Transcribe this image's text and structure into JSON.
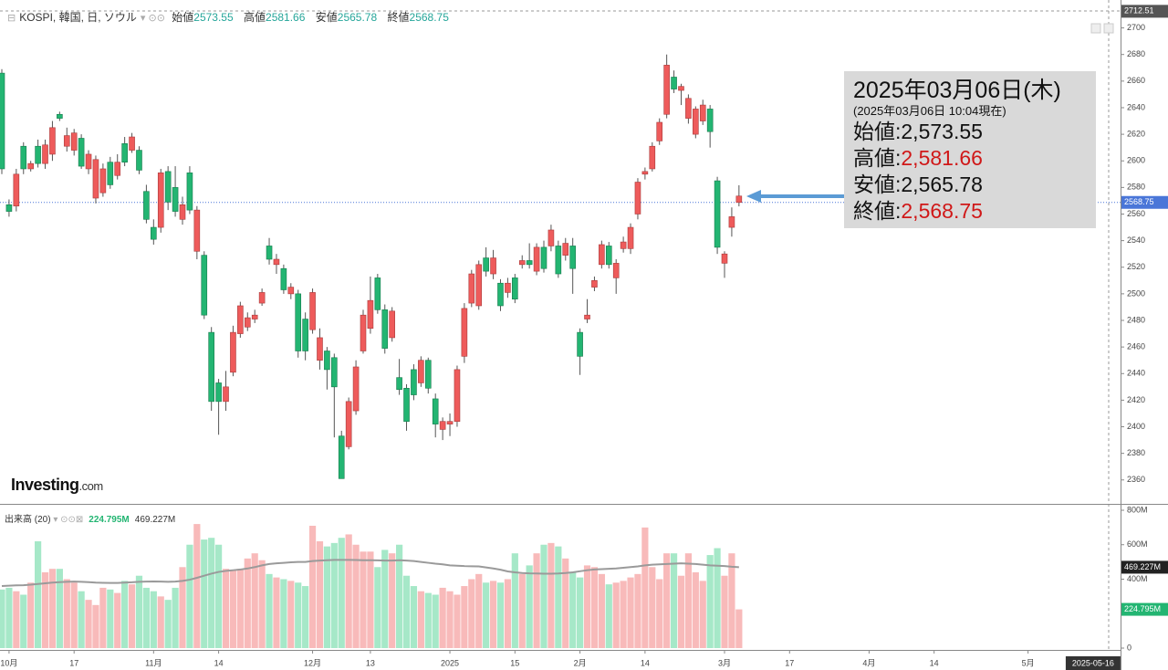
{
  "chart_data": {
    "type": "candlestick",
    "title": "KOSPI, 韓国, 日, ソウル",
    "header_labels": [
      "始値",
      "高値",
      "安値",
      "終値"
    ],
    "watermark": [
      "Investing",
      ".com"
    ],
    "volume_title": "出来高 (20)",
    "volume_labels": {
      "last": "224.795M",
      "ma": "469.227M"
    },
    "info_box": {
      "date": "2025年03月06日(木)",
      "time": "(2025年03月06日 10:04現在)",
      "rows": [
        {
          "label": "始値:",
          "value": "2,573.55"
        },
        {
          "label": "高値:",
          "value": "2,581.66"
        },
        {
          "label": "安値:",
          "value": "2,565.78"
        },
        {
          "label": "終値:",
          "value": "2,568.75"
        }
      ]
    },
    "colors": {
      "up": "#23b572",
      "down": "#ee5b5b",
      "up_volume": "#a6e8c8",
      "down_volume": "#f8baba",
      "ma": "#9a9a9a",
      "last": "#4a76d8"
    },
    "grid": false,
    "ylim": [
      2342,
      2721
    ],
    "yticks": [
      2360,
      2380,
      2400,
      2420,
      2440,
      2460,
      2480,
      2500,
      2520,
      2540,
      2560,
      2580,
      2600,
      2620,
      2640,
      2660,
      2680,
      2700
    ],
    "top_label": 2712.51,
    "volume_ylim": [
      0,
      800
    ],
    "volume_yticks": [
      0,
      {
        "value": 200,
        "label": "200M"
      },
      {
        "value": 400,
        "label": "400M"
      },
      {
        "value": 600,
        "label": "600M"
      },
      {
        "value": 800,
        "label": "800M"
      }
    ],
    "categories": [
      null,
      "10月",
      null,
      null,
      null,
      null,
      null,
      null,
      null,
      null,
      "17",
      null,
      null,
      null,
      null,
      null,
      null,
      null,
      null,
      null,
      null,
      "11月",
      null,
      null,
      null,
      null,
      null,
      null,
      null,
      null,
      "14",
      null,
      null,
      null,
      null,
      null,
      null,
      null,
      null,
      null,
      null,
      null,
      null,
      "12月",
      null,
      null,
      null,
      null,
      null,
      null,
      null,
      "13",
      null,
      null,
      null,
      null,
      null,
      null,
      null,
      null,
      null,
      null,
      "2025",
      null,
      null,
      null,
      null,
      null,
      null,
      null,
      null,
      "15",
      null,
      null,
      null,
      null,
      null,
      null,
      null,
      null,
      "2月",
      null,
      null,
      null,
      null,
      null,
      null,
      null,
      null,
      "14",
      null,
      null,
      null,
      null,
      null,
      null,
      null,
      null,
      null,
      null,
      "3月",
      null,
      null,
      null,
      null,
      null,
      null,
      null,
      null,
      "17",
      null,
      null,
      null,
      null,
      null,
      null,
      null,
      null,
      null,
      null,
      "4月",
      null,
      null,
      null,
      null,
      null,
      null,
      null,
      null,
      "14",
      null,
      null,
      null,
      null,
      null,
      null,
      null,
      null,
      null,
      null,
      null,
      null,
      "5月",
      null,
      null,
      null,
      null,
      null,
      null,
      null,
      null,
      "2025-05-16"
    ],
    "ohlc": [
      [
        2594,
        2669,
        2590,
        2666
      ],
      [
        2562,
        2571,
        2558,
        2567
      ],
      [
        2590,
        2594,
        2562,
        2566
      ],
      [
        2594,
        2614,
        2590,
        2611
      ],
      [
        2598,
        2600,
        2592,
        2594
      ],
      [
        2598,
        2616,
        2595,
        2611
      ],
      [
        2612,
        2616,
        2594,
        2598
      ],
      [
        2625,
        2630,
        2600,
        2605
      ],
      [
        2632,
        2637,
        2630,
        2635
      ],
      [
        2619,
        2625,
        2607,
        2611
      ],
      [
        2621,
        2624,
        2604,
        2608
      ],
      [
        2596,
        2620,
        2594,
        2617
      ],
      [
        2605,
        2608,
        2590,
        2594
      ],
      [
        2601,
        2604,
        2568,
        2572
      ],
      [
        2594,
        2598,
        2573,
        2576
      ],
      [
        2582,
        2603,
        2579,
        2599
      ],
      [
        2599,
        2605,
        2586,
        2589
      ],
      [
        2599,
        2618,
        2596,
        2613
      ],
      [
        2618,
        2621,
        2606,
        2608
      ],
      [
        2593,
        2611,
        2590,
        2608
      ],
      [
        2556,
        2582,
        2553,
        2577
      ],
      [
        2541,
        2556,
        2537,
        2550
      ],
      [
        2591,
        2594,
        2546,
        2550
      ],
      [
        2569,
        2596,
        2563,
        2592
      ],
      [
        2562,
        2596,
        2558,
        2580
      ],
      [
        2567,
        2573,
        2552,
        2556
      ],
      [
        2563,
        2596,
        2560,
        2591
      ],
      [
        2563,
        2566,
        2526,
        2532
      ],
      [
        2484,
        2532,
        2481,
        2529
      ],
      [
        2419,
        2475,
        2412,
        2471
      ],
      [
        2419,
        2436,
        2394,
        2433
      ],
      [
        2430,
        2442,
        2412,
        2419
      ],
      [
        2471,
        2476,
        2438,
        2441
      ],
      [
        2491,
        2494,
        2467,
        2470
      ],
      [
        2482,
        2486,
        2472,
        2475
      ],
      [
        2484,
        2488,
        2478,
        2481
      ],
      [
        2501,
        2504,
        2491,
        2493
      ],
      [
        2526,
        2542,
        2522,
        2536
      ],
      [
        2526,
        2530,
        2515,
        2522
      ],
      [
        2503,
        2522,
        2500,
        2519
      ],
      [
        2505,
        2508,
        2496,
        2500
      ],
      [
        2457,
        2503,
        2452,
        2500
      ],
      [
        2457,
        2486,
        2450,
        2481
      ],
      [
        2501,
        2504,
        2470,
        2473
      ],
      [
        2467,
        2474,
        2443,
        2450
      ],
      [
        2443,
        2460,
        2428,
        2457
      ],
      [
        2430,
        2455,
        2392,
        2452
      ],
      [
        2361,
        2397,
        2361,
        2393
      ],
      [
        2419,
        2422,
        2383,
        2385
      ],
      [
        2445,
        2450,
        2409,
        2412
      ],
      [
        2484,
        2488,
        2455,
        2457
      ],
      [
        2495,
        2513,
        2470,
        2474
      ],
      [
        2488,
        2515,
        2485,
        2512
      ],
      [
        2459,
        2492,
        2455,
        2488
      ],
      [
        2487,
        2490,
        2464,
        2467
      ],
      [
        2428,
        2451,
        2424,
        2437
      ],
      [
        2404,
        2432,
        2397,
        2429
      ],
      [
        2424,
        2447,
        2420,
        2443
      ],
      [
        2450,
        2453,
        2430,
        2433
      ],
      [
        2429,
        2452,
        2425,
        2450
      ],
      [
        2402,
        2425,
        2392,
        2421
      ],
      [
        2404,
        2407,
        2390,
        2398
      ],
      [
        2404,
        2410,
        2393,
        2402
      ],
      [
        2443,
        2446,
        2400,
        2404
      ],
      [
        2489,
        2493,
        2448,
        2453
      ],
      [
        2515,
        2518,
        2490,
        2493
      ],
      [
        2522,
        2525,
        2488,
        2491
      ],
      [
        2517,
        2535,
        2513,
        2527
      ],
      [
        2527,
        2533,
        2511,
        2515
      ],
      [
        2491,
        2511,
        2487,
        2508
      ],
      [
        2508,
        2512,
        2497,
        2501
      ],
      [
        2496,
        2515,
        2493,
        2512
      ],
      [
        2525,
        2529,
        2519,
        2522
      ],
      [
        2522,
        2538,
        2519,
        2525
      ],
      [
        2535,
        2538,
        2514,
        2517
      ],
      [
        2519,
        2540,
        2516,
        2535
      ],
      [
        2548,
        2552,
        2532,
        2536
      ],
      [
        2515,
        2540,
        2512,
        2536
      ],
      [
        2538,
        2542,
        2525,
        2529
      ],
      [
        2519,
        2542,
        2500,
        2536
      ],
      [
        2453,
        2474,
        2439,
        2471
      ],
      [
        2484,
        2496,
        2478,
        2481
      ],
      [
        2510,
        2513,
        2502,
        2505
      ],
      [
        2537,
        2540,
        2519,
        2522
      ],
      [
        2522,
        2539,
        2519,
        2536
      ],
      [
        2523,
        2526,
        2500,
        2512
      ],
      [
        2539,
        2543,
        2531,
        2534
      ],
      [
        2550,
        2553,
        2530,
        2534
      ],
      [
        2584,
        2587,
        2556,
        2560
      ],
      [
        2592,
        2595,
        2586,
        2590
      ],
      [
        2611,
        2614,
        2592,
        2594
      ],
      [
        2629,
        2632,
        2612,
        2615
      ],
      [
        2672,
        2680,
        2632,
        2635
      ],
      [
        2654,
        2668,
        2651,
        2663
      ],
      [
        2656,
        2658,
        2642,
        2653
      ],
      [
        2647,
        2650,
        2628,
        2632
      ],
      [
        2639,
        2641,
        2617,
        2620
      ],
      [
        2642,
        2646,
        2627,
        2630
      ],
      [
        2622,
        2642,
        2610,
        2639
      ],
      [
        2535,
        2588,
        2530,
        2585
      ],
      [
        2530,
        2532,
        2512,
        2523
      ],
      [
        2558,
        2565,
        2543,
        2550
      ],
      [
        2573.55,
        2581.66,
        2565.78,
        2568.75
      ],
      null,
      null,
      null,
      null,
      null,
      null,
      null,
      null,
      null,
      null,
      null,
      null,
      null,
      null,
      null,
      null,
      null,
      null,
      null,
      null,
      null,
      null,
      null,
      null,
      null,
      null,
      null,
      null,
      null,
      null,
      null,
      null,
      null,
      null,
      null,
      null,
      null,
      null,
      null,
      null,
      null,
      null,
      null,
      null,
      null,
      null,
      null,
      null,
      null
    ],
    "volume": [
      340,
      350,
      330,
      310,
      380,
      620,
      440,
      460,
      460,
      400,
      380,
      330,
      280,
      250,
      350,
      340,
      320,
      390,
      370,
      420,
      350,
      330,
      300,
      280,
      350,
      470,
      600,
      720,
      630,
      640,
      600,
      460,
      450,
      460,
      520,
      550,
      510,
      430,
      410,
      400,
      390,
      380,
      360,
      710,
      620,
      590,
      610,
      640,
      660,
      600,
      560,
      560,
      470,
      570,
      550,
      600,
      420,
      360,
      330,
      320,
      310,
      350,
      330,
      310,
      360,
      400,
      430,
      380,
      390,
      380,
      400,
      550,
      430,
      480,
      550,
      600,
      610,
      590,
      520,
      440,
      410,
      480,
      470,
      430,
      370,
      380,
      390,
      410,
      430,
      700,
      470,
      400,
      550,
      550,
      420,
      550,
      440,
      390,
      540,
      580,
      420,
      550,
      224.795,
      null,
      null,
      null,
      null,
      null,
      null,
      null,
      null,
      null,
      null,
      null,
      null,
      null,
      null,
      null,
      null,
      null,
      null,
      null,
      null,
      null,
      null,
      null,
      null,
      null,
      null,
      null,
      null,
      null,
      null,
      null,
      null,
      null,
      null,
      null,
      null,
      null,
      null,
      null,
      null,
      null,
      null,
      null,
      null,
      null,
      null,
      null,
      null,
      null
    ],
    "volume_ma": [
      360,
      362,
      364,
      365,
      368,
      372,
      376,
      380,
      383,
      385,
      386,
      385,
      383,
      380,
      379,
      378,
      378,
      380,
      382,
      385,
      386,
      387,
      386,
      385,
      386,
      390,
      397,
      408,
      420,
      432,
      442,
      448,
      452,
      456,
      462,
      470,
      480,
      488,
      492,
      495,
      498,
      500,
      500,
      505,
      508,
      510,
      512,
      512,
      512,
      511,
      510,
      510,
      509,
      508,
      508,
      510,
      508,
      505,
      500,
      495,
      490,
      486,
      480,
      478,
      476,
      475,
      474,
      468,
      462,
      455,
      445,
      440,
      436,
      434,
      433,
      432,
      432,
      433,
      436,
      440,
      446,
      452,
      456,
      458,
      460,
      462,
      466,
      470,
      474,
      480,
      484,
      486,
      488,
      490,
      492,
      490,
      488,
      484,
      480,
      478,
      476,
      472,
      469.227,
      null,
      null,
      null,
      null,
      null,
      null,
      null,
      null,
      null,
      null,
      null,
      null,
      null,
      null,
      null,
      null,
      null,
      null,
      null,
      null,
      null,
      null,
      null,
      null,
      null,
      null,
      null,
      null,
      null,
      null,
      null,
      null,
      null,
      null,
      null,
      null,
      null,
      null,
      null,
      null,
      null,
      null,
      null,
      null,
      null,
      null,
      null,
      null,
      null
    ]
  }
}
